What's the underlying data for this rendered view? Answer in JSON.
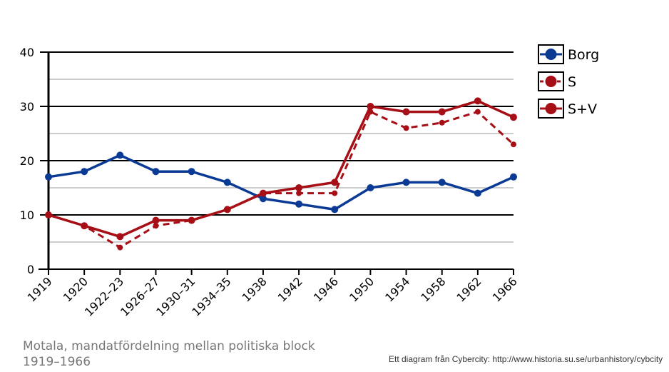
{
  "chart_data": {
    "type": "line",
    "categories": [
      "1919",
      "1920",
      "1922–23",
      "1926–27",
      "1930–31",
      "1934–35",
      "1938",
      "1942",
      "1946",
      "1950",
      "1954",
      "1958",
      "1962",
      "1966"
    ],
    "series": [
      {
        "name": "Borg",
        "color": "#0a3a94",
        "style": "solid",
        "values": [
          17,
          18,
          21,
          18,
          18,
          16,
          13,
          12,
          11,
          15,
          16,
          16,
          14,
          17
        ]
      },
      {
        "name": "S",
        "color": "#a50f15",
        "style": "dashed",
        "values": [
          10,
          8,
          4,
          8,
          9,
          11,
          14,
          14,
          14,
          29,
          26,
          27,
          29,
          23
        ]
      },
      {
        "name": "S+V",
        "color": "#a50f15",
        "style": "solid",
        "values": [
          10,
          8,
          6,
          9,
          9,
          11,
          14,
          15,
          16,
          30,
          29,
          29,
          31,
          28
        ]
      }
    ],
    "y_ticks": [
      "0",
      "10",
      "20",
      "30",
      "40"
    ],
    "ylim": [
      0,
      40
    ],
    "grid": true,
    "legend_position": "right"
  },
  "caption": "Motala, mandatfördelning mellan politiska block 1919–1966",
  "credit": "Ett diagram från Cybercity: http://www.historia.su.se/urbanhistory/cybcity"
}
